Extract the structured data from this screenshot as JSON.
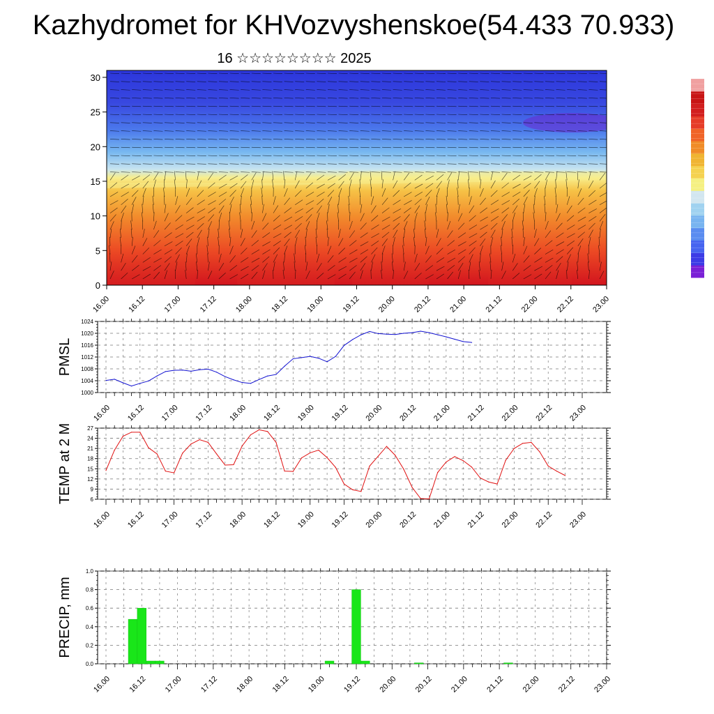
{
  "title": "Kazhydromet for KHVozvyshenskoe(54.433 70.933)",
  "subtitle": "16 ☆☆☆☆☆☆☆☆ 2025",
  "colors": {
    "pmsl_line": "#1010d0",
    "temp_line": "#e01010",
    "precip_bar": "#19e619",
    "grid": "#777777"
  },
  "x_tick_labels": [
    "16.00",
    "16.12",
    "17.00",
    "17.12",
    "18.00",
    "18.12",
    "19.00",
    "19.12",
    "20.00",
    "20.12",
    "21.00",
    "21.12",
    "22.00",
    "22.12",
    "23.00"
  ],
  "chart_data": [
    {
      "type": "heatmap",
      "name": "cross-section",
      "ylim": [
        0,
        31
      ],
      "yticks": [
        0,
        5,
        10,
        15,
        20,
        25,
        30
      ],
      "xlim": [
        0,
        7
      ],
      "colorbar": [
        "#7a20d6",
        "#3c3ce6",
        "#4664f0",
        "#5a8cf0",
        "#78b4f0",
        "#a0d2f0",
        "#d2e6f0",
        "#f5f082",
        "#f5d250",
        "#f0b432",
        "#f08c28",
        "#f06428",
        "#e63c28",
        "#d21e1e",
        "#c81414",
        "#f0a0a0"
      ]
    },
    {
      "type": "line",
      "name": "pmsl",
      "ylabel": "PMSL",
      "ylim": [
        1000,
        1024
      ],
      "yticks": [
        1000,
        1004,
        1008,
        1012,
        1016,
        1020,
        1024
      ],
      "x_start": 0,
      "x_step_hours": 3,
      "values": [
        1004.1,
        1004.5,
        1003.3,
        1002.2,
        1003.1,
        1003.9,
        1005.6,
        1007.1,
        1007.5,
        1007.6,
        1007.2,
        1007.7,
        1007.9,
        1006.9,
        1005.4,
        1004.3,
        1003.4,
        1003.1,
        1004.4,
        1005.6,
        1006.1,
        1008.9,
        1011.4,
        1011.8,
        1012.2,
        1011.6,
        1010.4,
        1012.2,
        1015.9,
        1017.9,
        1019.5,
        1020.6,
        1019.9,
        1019.7,
        1019.6,
        1020.0,
        1020.2,
        1020.7,
        1020.2,
        1019.5,
        1018.8,
        1018.0,
        1017.2,
        1016.9
      ]
    },
    {
      "type": "line",
      "name": "temp",
      "ylabel": "TEMP at 2 M",
      "ylim": [
        6,
        27
      ],
      "yticks": [
        6,
        9,
        12,
        15,
        18,
        21,
        24,
        27
      ],
      "x_start": 0,
      "x_step_hours": 3,
      "values": [
        14.5,
        20.5,
        24.6,
        25.8,
        25.8,
        21.2,
        19.4,
        14.3,
        13.8,
        19.6,
        22.3,
        23.6,
        22.8,
        19.4,
        16.1,
        16.2,
        21.7,
        25.0,
        26.5,
        26.0,
        22.8,
        14.3,
        14.2,
        18.2,
        19.7,
        20.5,
        18.3,
        15.4,
        10.5,
        8.8,
        8.3,
        15.8,
        18.7,
        21.6,
        19.0,
        14.9,
        9.5,
        6.2,
        6.1,
        13.9,
        17.0,
        18.6,
        17.4,
        15.5,
        12.3,
        11.1,
        10.5,
        17.5,
        21.0,
        22.5,
        22.8,
        20.0,
        15.8,
        14.3,
        13.0
      ]
    },
    {
      "type": "bar",
      "name": "precip",
      "ylabel": "PRECIP, mm",
      "ylim": [
        0,
        1
      ],
      "yticks": [
        "0.0",
        "0.2",
        "0.4",
        "0.6",
        "0.8",
        "1.0"
      ],
      "x_step_hours": 3,
      "values": [
        0,
        0,
        0,
        0.48,
        0.6,
        0.03,
        0.03,
        0,
        0,
        0,
        0,
        0,
        0,
        0,
        0,
        0,
        0,
        0,
        0,
        0,
        0,
        0,
        0,
        0,
        0,
        0.03,
        0,
        0,
        0.8,
        0.03,
        0,
        0,
        0,
        0,
        0,
        0.01,
        0,
        0,
        0,
        0,
        0,
        0,
        0,
        0,
        0,
        0.01,
        0,
        0,
        0,
        0,
        0,
        0,
        0,
        0,
        0,
        0
      ]
    }
  ]
}
